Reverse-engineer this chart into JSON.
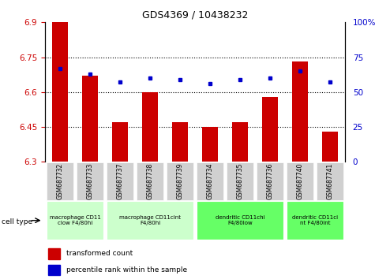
{
  "title": "GDS4369 / 10438232",
  "samples": [
    "GSM687732",
    "GSM687733",
    "GSM687737",
    "GSM687738",
    "GSM687739",
    "GSM687734",
    "GSM687735",
    "GSM687736",
    "GSM687740",
    "GSM687741"
  ],
  "red_values": [
    6.9,
    6.67,
    6.47,
    6.6,
    6.47,
    6.45,
    6.47,
    6.58,
    6.73,
    6.43
  ],
  "blue_values": [
    67,
    63,
    57,
    60,
    59,
    56,
    59,
    60,
    65,
    57
  ],
  "ylim_left": [
    6.3,
    6.9
  ],
  "ylim_right": [
    0,
    100
  ],
  "yticks_left": [
    6.3,
    6.45,
    6.6,
    6.75,
    6.9
  ],
  "ytick_labels_left": [
    "6.3",
    "6.45",
    "6.6",
    "6.75",
    "6.9"
  ],
  "yticks_right": [
    0,
    25,
    50,
    75,
    100
  ],
  "ytick_labels_right": [
    "0",
    "25",
    "50",
    "75",
    "100%"
  ],
  "bar_color": "#cc0000",
  "dot_color": "#0000cc",
  "grid_dotted_at": [
    6.45,
    6.6,
    6.75
  ],
  "cell_type_groups": [
    {
      "label": "macrophage CD11\nclow F4/80hi",
      "start": 0,
      "end": 2,
      "color": "#ccffcc"
    },
    {
      "label": "macrophage CD11cint\nF4/80hi",
      "start": 2,
      "end": 5,
      "color": "#ccffcc"
    },
    {
      "label": "dendritic CD11chi\nF4/80low",
      "start": 5,
      "end": 8,
      "color": "#66ff66"
    },
    {
      "label": "dendritic CD11ci\nnt F4/80int",
      "start": 8,
      "end": 10,
      "color": "#66ff66"
    }
  ],
  "legend_red": "transformed count",
  "legend_blue": "percentile rank within the sample",
  "cell_type_label": "cell type"
}
